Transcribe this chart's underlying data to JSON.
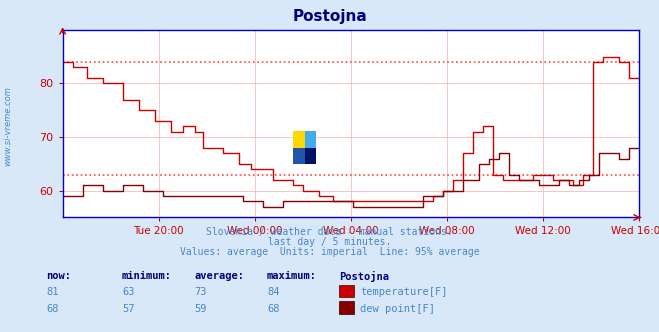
{
  "title": "Postojna",
  "title_color": "#000080",
  "bg_color": "#d8e8f8",
  "plot_bg_color": "#ffffff",
  "grid_color": "#ffaaaa",
  "subtitle_lines": [
    "Slovenia / weather data - manual stations.",
    "last day / 5 minutes.",
    "Values: average  Units: imperial  Line: 95% average"
  ],
  "subtitle_color": "#4488cc",
  "xlabel_color": "#4488cc",
  "ylabel_left_label": "www.si-vreme.com",
  "ylabel_color": "#4488cc",
  "x_tick_labels": [
    "Tue 20:00",
    "Wed 00:00",
    "Wed 04:00",
    "Wed 08:00",
    "Wed 12:00",
    "Wed 16:00"
  ],
  "x_tick_positions": [
    48,
    96,
    144,
    192,
    240,
    288
  ],
  "ylim": [
    55,
    90
  ],
  "y_ticks": [
    60,
    70,
    80
  ],
  "total_points": 289,
  "avg_line_95_temp": 84,
  "avg_line_95_dew": 63,
  "temp_color": "#cc0000",
  "dew_color": "#880000",
  "avg_line_color": "#ff4444",
  "legend_labels": [
    "temperature[F]",
    "dew point[F]"
  ],
  "legend_colors": [
    "#cc0000",
    "#880000"
  ],
  "stats_headers": [
    "now:",
    "minimum:",
    "average:",
    "maximum:",
    "Postojna"
  ],
  "stats_temp": [
    81,
    63,
    73,
    84
  ],
  "stats_dew": [
    68,
    57,
    59,
    68
  ],
  "stats_color": "#4488cc",
  "stats_header_color": "#000080",
  "x_axis_color": "#0000cc",
  "tick_color": "#cc0000",
  "spine_color": "#0000cc"
}
